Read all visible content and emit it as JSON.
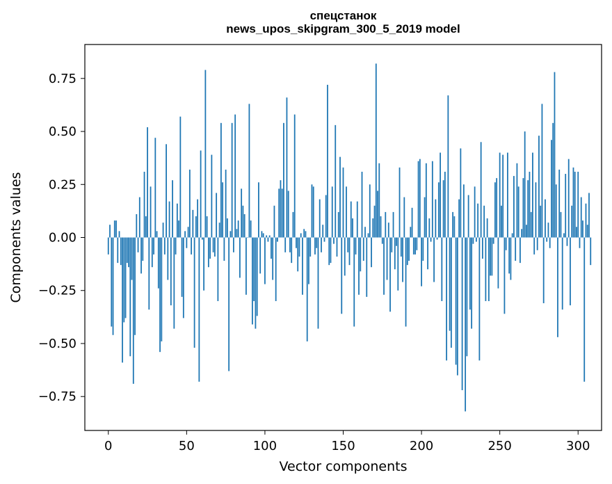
{
  "chart_data": {
    "type": "bar",
    "title_lines": [
      "спецстанок",
      "news_upos_skipgram_300_5_2019 model"
    ],
    "xlabel": "Vector components",
    "ylabel": "Components values",
    "xlim": [
      -15,
      315
    ],
    "ylim": [
      -0.91,
      0.91
    ],
    "x_ticks": [
      0,
      50,
      100,
      150,
      200,
      250,
      300
    ],
    "x_tick_labels": [
      "0",
      "50",
      "100",
      "150",
      "200",
      "250",
      "300"
    ],
    "y_ticks": [
      -0.75,
      -0.5,
      -0.25,
      0.0,
      0.25,
      0.5,
      0.75
    ],
    "y_tick_labels": [
      "−0.75",
      "−0.50",
      "−0.25",
      "0.00",
      "0.25",
      "0.50",
      "0.75"
    ],
    "bar_color": "#1f77b4",
    "bar_width": 0.8,
    "values": [
      -0.08,
      0.06,
      -0.42,
      -0.46,
      0.08,
      0.08,
      -0.12,
      0.03,
      -0.13,
      -0.59,
      -0.4,
      -0.38,
      -0.12,
      -0.14,
      -0.56,
      -0.2,
      -0.69,
      -0.46,
      0.11,
      -0.07,
      0.19,
      -0.17,
      -0.11,
      0.31,
      0.1,
      0.52,
      -0.34,
      0.24,
      -0.14,
      -0.08,
      0.47,
      0.03,
      -0.24,
      -0.54,
      -0.49,
      0.07,
      -0.08,
      0.44,
      -0.2,
      0.17,
      -0.32,
      0.27,
      -0.43,
      -0.08,
      0.16,
      0.08,
      0.57,
      -0.28,
      -0.38,
      0.03,
      -0.05,
      0.05,
      0.32,
      -0.08,
      0.13,
      -0.52,
      0.1,
      0.18,
      -0.68,
      0.41,
      -0.01,
      -0.25,
      0.79,
      0.1,
      -0.14,
      -0.1,
      0.39,
      -0.07,
      -0.09,
      0.21,
      -0.3,
      0.07,
      0.54,
      0.26,
      -0.11,
      0.32,
      0.09,
      -0.63,
      0.03,
      0.54,
      -0.07,
      0.58,
      0.04,
      0.08,
      -0.19,
      0.23,
      0.15,
      0.11,
      -0.27,
      0.0,
      0.63,
      0.08,
      -0.41,
      -0.3,
      -0.43,
      -0.37,
      0.26,
      -0.17,
      0.03,
      0.02,
      -0.22,
      0.01,
      -0.02,
      0.01,
      -0.1,
      -0.2,
      0.15,
      -0.3,
      -0.02,
      0.23,
      0.27,
      0.23,
      0.54,
      -0.07,
      0.66,
      0.22,
      -0.07,
      -0.12,
      0.12,
      0.58,
      -0.05,
      -0.16,
      -0.09,
      0.02,
      -0.27,
      0.04,
      0.03,
      -0.49,
      -0.22,
      -0.09,
      0.25,
      0.24,
      -0.08,
      -0.05,
      -0.43,
      0.18,
      -0.07,
      0.06,
      -0.02,
      0.2,
      0.72,
      -0.13,
      -0.12,
      0.24,
      -0.03,
      0.53,
      -0.09,
      0.12,
      0.38,
      -0.36,
      0.33,
      -0.18,
      0.24,
      -0.07,
      -0.13,
      0.17,
      0.09,
      -0.42,
      -0.08,
      0.17,
      -0.27,
      -0.16,
      0.31,
      -0.11,
      0.05,
      -0.28,
      0.02,
      0.25,
      -0.14,
      0.09,
      0.15,
      0.82,
      0.22,
      0.35,
      0.1,
      -0.03,
      -0.27,
      0.12,
      -0.2,
      0.07,
      -0.35,
      -0.07,
      0.12,
      -0.15,
      -0.04,
      -0.25,
      0.33,
      -0.09,
      -0.21,
      0.19,
      -0.42,
      -0.13,
      -0.11,
      0.05,
      0.14,
      -0.08,
      -0.08,
      -0.06,
      0.36,
      0.37,
      -0.23,
      -0.11,
      0.19,
      0.35,
      -0.15,
      0.09,
      -0.02,
      0.36,
      -0.21,
      0.18,
      -0.01,
      0.26,
      0.4,
      -0.3,
      0.27,
      0.31,
      -0.58,
      0.67,
      -0.44,
      -0.52,
      0.12,
      0.1,
      -0.6,
      -0.65,
      0.18,
      0.42,
      -0.72,
      0.25,
      -0.82,
      -0.56,
      0.2,
      -0.34,
      -0.43,
      -0.03,
      0.24,
      -0.02,
      0.16,
      -0.58,
      0.45,
      -0.1,
      0.15,
      -0.3,
      0.09,
      -0.3,
      -0.18,
      -0.18,
      -0.03,
      0.26,
      0.28,
      -0.24,
      0.4,
      0.15,
      0.39,
      -0.36,
      -0.06,
      0.4,
      -0.17,
      -0.2,
      0.02,
      0.29,
      -0.11,
      0.35,
      0.24,
      -0.12,
      0.04,
      0.28,
      0.5,
      0.06,
      0.27,
      0.31,
      0.12,
      0.4,
      -0.08,
      0.26,
      -0.06,
      0.48,
      0.15,
      0.63,
      -0.31,
      0.18,
      -0.02,
      0.07,
      -0.05,
      0.46,
      0.54,
      0.78,
      0.25,
      -0.47,
      0.32,
      0.12,
      -0.34,
      0.02,
      0.3,
      -0.04,
      0.37,
      -0.32,
      0.15,
      0.33,
      0.31,
      0.05,
      0.31,
      -0.05,
      0.19,
      0.08,
      -0.68,
      0.16,
      0.06,
      0.21,
      -0.13
    ]
  }
}
